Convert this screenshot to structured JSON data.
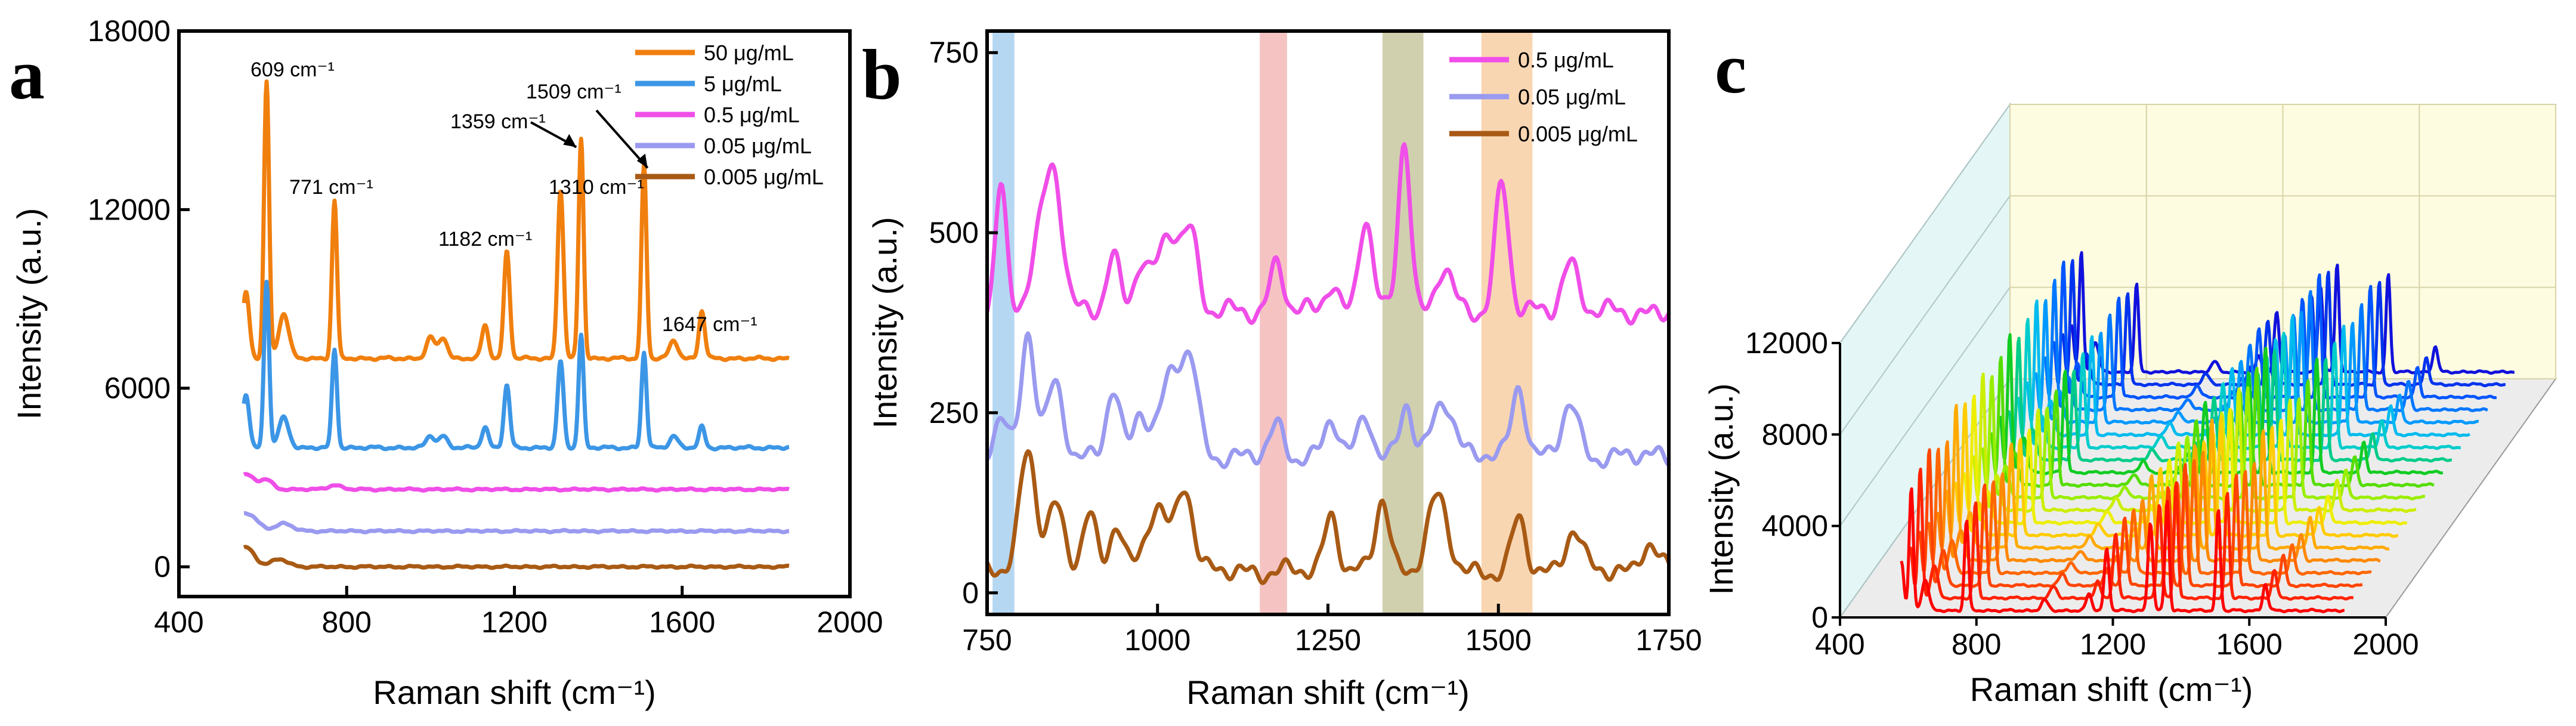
{
  "chart_data": [
    {
      "type": "line",
      "panel_label": "a",
      "xlabel": "Raman shift (cm⁻¹)",
      "ylabel": "Intensity (a.u.)",
      "xlim": [
        400,
        2000
      ],
      "ylim": [
        -1000,
        18000
      ],
      "xticks": [
        "400",
        "800",
        "1200",
        "1600",
        "2000"
      ],
      "xtick_values": [
        400,
        800,
        1200,
        1600,
        2000
      ],
      "yticks": [
        "0",
        "6000",
        "12000",
        "18000"
      ],
      "ytick_values": [
        0,
        6000,
        12000,
        18000
      ],
      "legend_position": "top-right",
      "peaks": [
        {
          "label": "609 cm⁻¹",
          "x": 609
        },
        {
          "label": "771 cm⁻¹",
          "x": 771
        },
        {
          "label": "1182 cm⁻¹",
          "x": 1182
        },
        {
          "label": "1310 cm⁻¹",
          "x": 1310
        },
        {
          "label": "1359 cm⁻¹",
          "x": 1359
        },
        {
          "label": "1509 cm⁻¹",
          "x": 1509
        },
        {
          "label": "1647 cm⁻¹",
          "x": 1647
        }
      ],
      "series": [
        {
          "name": "50 μg/mL",
          "color": "#f07f0e",
          "baseline": 7000,
          "peaks": [
            [
              560,
              2200,
              8
            ],
            [
              609,
              9300,
              6
            ],
            [
              650,
              1500,
              12
            ],
            [
              771,
              5300,
              6
            ],
            [
              1000,
              700,
              10
            ],
            [
              1030,
              700,
              10
            ],
            [
              1130,
              1100,
              8
            ],
            [
              1182,
              3600,
              7
            ],
            [
              1310,
              5700,
              7
            ],
            [
              1359,
              7400,
              6
            ],
            [
              1509,
              6500,
              6
            ],
            [
              1580,
              600,
              10
            ],
            [
              1647,
              1600,
              7
            ]
          ]
        },
        {
          "name": "5 μg/mL",
          "color": "#3c96e6",
          "baseline": 4000,
          "peaks": [
            [
              560,
              1800,
              8
            ],
            [
              609,
              5600,
              6
            ],
            [
              650,
              1000,
              12
            ],
            [
              771,
              3300,
              6
            ],
            [
              1000,
              400,
              10
            ],
            [
              1030,
              400,
              10
            ],
            [
              1130,
              700,
              8
            ],
            [
              1182,
              2100,
              7
            ],
            [
              1310,
              2900,
              7
            ],
            [
              1359,
              3800,
              6
            ],
            [
              1509,
              3200,
              6
            ],
            [
              1580,
              400,
              10
            ],
            [
              1647,
              700,
              7
            ]
          ]
        },
        {
          "name": "0.5 μg/mL",
          "color": "#f04ee8",
          "baseline": 2600,
          "peaks": [
            [
              560,
              500,
              20
            ],
            [
              609,
              300,
              15
            ],
            [
              771,
              150,
              15
            ]
          ]
        },
        {
          "name": "0.05 μg/mL",
          "color": "#9a9af0",
          "baseline": 1200,
          "peaks": [
            [
              560,
              600,
              25
            ],
            [
              650,
              250,
              20
            ]
          ]
        },
        {
          "name": "0.005 μg/mL",
          "color": "#a85a14",
          "baseline": 0,
          "peaks": [
            [
              560,
              650,
              20
            ],
            [
              640,
              250,
              20
            ]
          ]
        }
      ]
    },
    {
      "type": "line",
      "panel_label": "b",
      "xlabel": "Raman shift (cm⁻¹)",
      "ylabel": "Intensity (a.u.)",
      "xlim": [
        750,
        1750
      ],
      "ylim": [
        -30,
        780
      ],
      "xticks": [
        "750",
        "1000",
        "1250",
        "1500",
        "1750"
      ],
      "xtick_values": [
        750,
        1000,
        1250,
        1500,
        1750
      ],
      "yticks": [
        "0",
        "250",
        "500",
        "750"
      ],
      "ytick_values": [
        0,
        250,
        500,
        750
      ],
      "legend_position": "top-right",
      "highlight_bands": [
        {
          "from": 758,
          "to": 790,
          "color": "#a8d0f0"
        },
        {
          "from": 1150,
          "to": 1190,
          "color": "#f5b8b8"
        },
        {
          "from": 1330,
          "to": 1390,
          "color": "#c8c8a0"
        },
        {
          "from": 1475,
          "to": 1550,
          "color": "#f8cfa5"
        }
      ],
      "series": [
        {
          "name": "0.5 μg/mL",
          "color": "#f04ee8",
          "baseline": 390,
          "peaks": [
            [
              770,
              170,
              8
            ],
            [
              830,
              110,
              15
            ],
            [
              850,
              150,
              12
            ],
            [
              935,
              80,
              10
            ],
            [
              975,
              60,
              10
            ],
            [
              1020,
              110,
              20
            ],
            [
              1050,
              80,
              10
            ],
            [
              1175,
              70,
              10
            ],
            [
              1255,
              40,
              10
            ],
            [
              1305,
              130,
              10
            ],
            [
              1362,
              240,
              9
            ],
            [
              1420,
              60,
              12
            ],
            [
              1505,
              180,
              10
            ],
            [
              1605,
              70,
              12
            ]
          ]
        },
        {
          "name": "0.05 μg/mL",
          "color": "#9a9af0",
          "baseline": 190,
          "peaks": [
            [
              770,
              60,
              10
            ],
            [
              810,
              170,
              10
            ],
            [
              850,
              100,
              12
            ],
            [
              935,
              90,
              10
            ],
            [
              975,
              60,
              10
            ],
            [
              1025,
              120,
              20
            ],
            [
              1050,
              80,
              10
            ],
            [
              1175,
              40,
              10
            ],
            [
              1255,
              50,
              10
            ],
            [
              1305,
              60,
              10
            ],
            [
              1365,
              70,
              9
            ],
            [
              1420,
              80,
              15
            ],
            [
              1530,
              100,
              10
            ],
            [
              1605,
              70,
              12
            ]
          ]
        },
        {
          "name": "0.005 μg/mL",
          "color": "#a85a14",
          "baseline": 30,
          "peaks": [
            [
              810,
              170,
              12
            ],
            [
              850,
              90,
              12
            ],
            [
              900,
              80,
              10
            ],
            [
              940,
              70,
              10
            ],
            [
              1000,
              90,
              15
            ],
            [
              1040,
              120,
              12
            ],
            [
              1255,
              80,
              10
            ],
            [
              1330,
              100,
              10
            ],
            [
              1410,
              100,
              15
            ],
            [
              1530,
              70,
              10
            ],
            [
              1610,
              60,
              12
            ],
            [
              1720,
              40,
              12
            ]
          ]
        }
      ]
    },
    {
      "type": "line",
      "subtype": "3d-waterfall",
      "panel_label": "c",
      "xlabel": "Raman shift (cm⁻¹)",
      "ylabel": "Intensity (a.u.)",
      "xlim": [
        400,
        2000
      ],
      "ylim": [
        0,
        12000
      ],
      "xticks": [
        "400",
        "800",
        "1200",
        "1600",
        "2000"
      ],
      "xtick_values": [
        400,
        800,
        1200,
        1600,
        2000
      ],
      "yticks": [
        "0",
        "4000",
        "8000",
        "12000"
      ],
      "ytick_values": [
        0,
        4000,
        8000,
        12000
      ],
      "series_count": 20,
      "colors": [
        "#ff0000",
        "#ff2200",
        "#ff4400",
        "#ff6600",
        "#ff8800",
        "#ffaa00",
        "#ffcc00",
        "#eeee00",
        "#ccee00",
        "#99ee00",
        "#55dd00",
        "#11cc22",
        "#00cc88",
        "#00cccc",
        "#00bbee",
        "#0099ff",
        "#0077ff",
        "#0055ff",
        "#0033ee",
        "#1111dd"
      ],
      "base_spectrum": [
        [
          580,
          2400,
          7
        ],
        [
          609,
          6000,
          6
        ],
        [
          650,
          1500,
          10
        ],
        [
          771,
          4400,
          6
        ],
        [
          1000,
          500,
          10
        ],
        [
          1130,
          800,
          8
        ],
        [
          1182,
          3000,
          7
        ],
        [
          1310,
          4300,
          7
        ],
        [
          1359,
          5400,
          6
        ],
        [
          1509,
          4900,
          6
        ],
        [
          1647,
          1300,
          7
        ]
      ],
      "scale_factors": [
        0.9,
        0.95,
        1.0,
        0.92,
        0.88,
        1.05,
        0.97,
        0.93,
        1.0,
        0.9,
        0.95,
        1.02,
        0.9,
        0.94,
        0.98,
        0.9,
        0.96,
        1.0,
        0.92,
        0.88
      ]
    }
  ]
}
